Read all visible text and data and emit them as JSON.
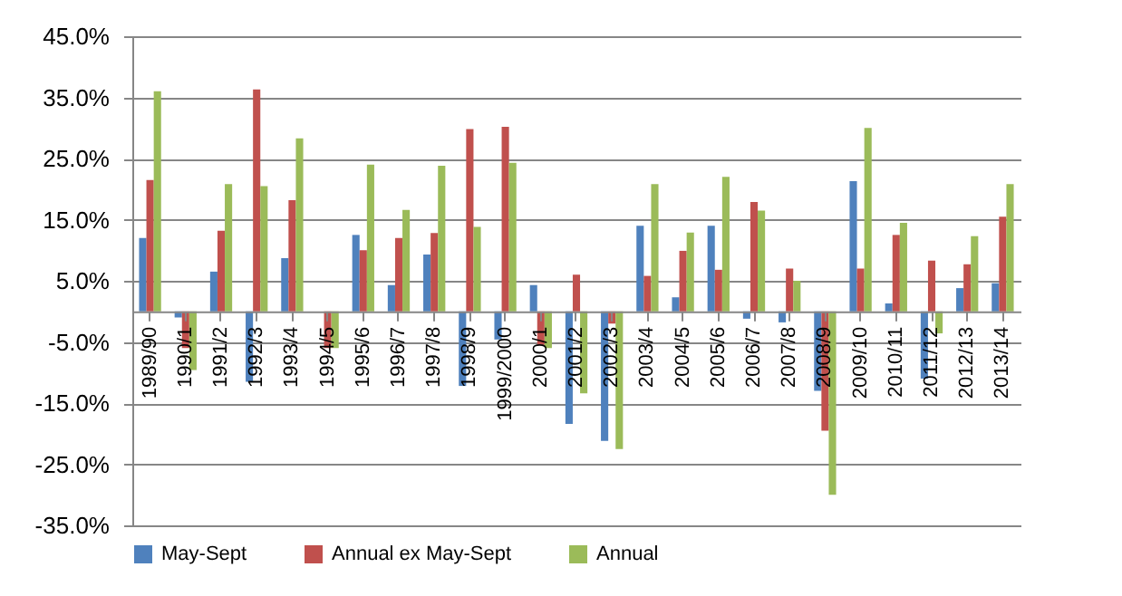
{
  "chart_data": {
    "type": "bar",
    "categories": [
      "1989/90",
      "1990/1",
      "1991/2",
      "1992/3",
      "1993/4",
      "1994/5",
      "1995/6",
      "1996/7",
      "1997/8",
      "1998/9",
      "1999/2000",
      "2000/1",
      "2001/2",
      "2002/3",
      "2003/4",
      "2004/5",
      "2005/6",
      "2006/7",
      "2007/8",
      "2008/9",
      "2009/10",
      "2010/11",
      "2011/12",
      "2012/13",
      "2013/14"
    ],
    "series": [
      {
        "name": "May-Sept",
        "color": "#4f81bd",
        "values": [
          12,
          -1,
          6.5,
          -11.5,
          8.7,
          0,
          12.5,
          4.3,
          9.3,
          -12.2,
          -4.6,
          4.3,
          -18.4,
          -21.2,
          14,
          2.3,
          14,
          -1.2,
          -1.8,
          -13,
          21.3,
          1.3,
          -11,
          3.8,
          4.6
        ]
      },
      {
        "name": "Annual ex May-Sept",
        "color": "#c0504d",
        "values": [
          21.5,
          -6,
          13.2,
          36.3,
          18.2,
          -6,
          10,
          12,
          12.8,
          29.8,
          30.2,
          -5.5,
          6,
          -2,
          5.8,
          9.9,
          6.8,
          17.9,
          7,
          -19.5,
          7,
          12.5,
          8.3,
          7.7,
          15.5
        ]
      },
      {
        "name": "Annual",
        "color": "#9bbb59",
        "values": [
          36,
          -9.6,
          20.8,
          20.5,
          28.3,
          -6,
          24,
          16.6,
          23.8,
          13.8,
          24.3,
          -6,
          -13.4,
          -22.5,
          20.8,
          12.9,
          22,
          16.5,
          5,
          -30,
          30,
          14.5,
          -3.6,
          12.3,
          20.8
        ]
      }
    ],
    "ylim": [
      -35,
      45
    ],
    "yticks": [
      {
        "value": -35,
        "label": "-35.0%"
      },
      {
        "value": -25,
        "label": "-25.0%"
      },
      {
        "value": -15,
        "label": "-15.0%"
      },
      {
        "value": -5,
        "label": "-5.0%"
      },
      {
        "value": 5,
        "label": "5.0%"
      },
      {
        "value": 15,
        "label": "15.0%"
      },
      {
        "value": 25,
        "label": "25.0%"
      },
      {
        "value": 35,
        "label": "35.0%"
      },
      {
        "value": 45,
        "label": "45.0%"
      }
    ],
    "grid": "y",
    "legend": "bottom"
  }
}
